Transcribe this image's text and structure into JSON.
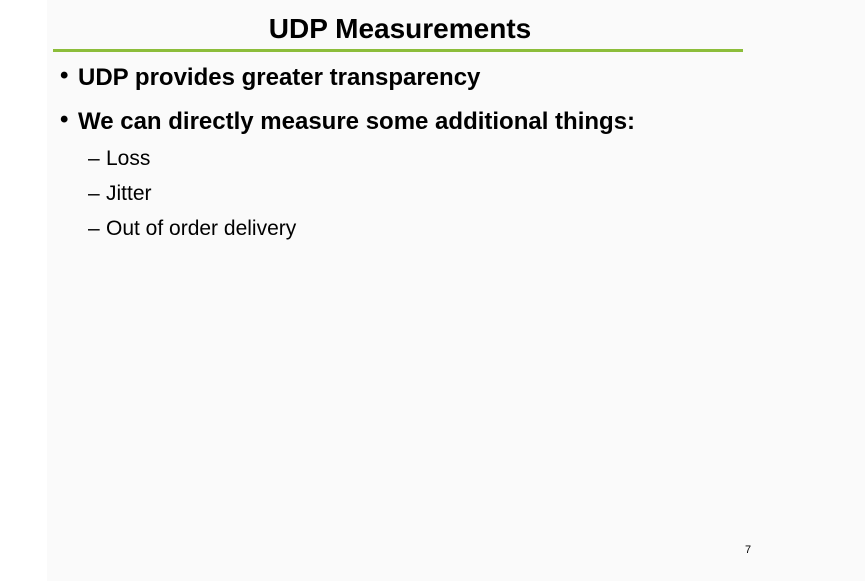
{
  "slide": {
    "title": "UDP Measurements",
    "bullets": [
      {
        "text": "UDP provides greater transparency"
      },
      {
        "text": "We can directly measure some additional things:"
      }
    ],
    "sub_items": [
      "Loss",
      "Jitter",
      "Out of order delivery"
    ],
    "bullet_glyph": "•",
    "dash_glyph": "–",
    "page_number": "7",
    "colors": {
      "title_rule": "#8cbd3a",
      "panel": "#fafafa",
      "text": "#000000"
    }
  }
}
